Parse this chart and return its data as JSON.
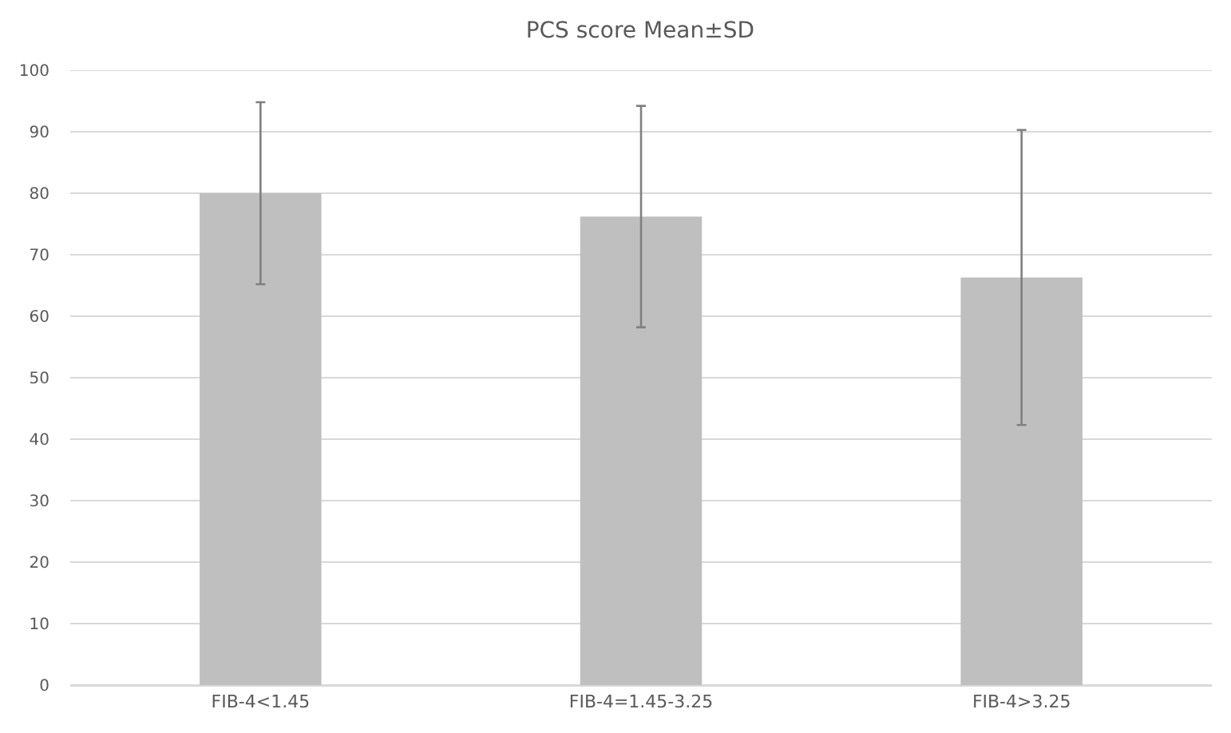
{
  "chart_data": {
    "type": "bar",
    "title": "PCS score Mean±SD",
    "categories": [
      "FIB-4<1.45",
      "FIB-4=1.45-3.25",
      "FIB-4>3.25"
    ],
    "values": [
      80,
      76.2,
      66.3
    ],
    "errors": [
      14.8,
      18,
      24
    ],
    "color": "#bfbfbf",
    "ylim": [
      0,
      100
    ],
    "yticks": [
      0,
      10,
      20,
      30,
      40,
      50,
      60,
      70,
      80,
      90,
      100
    ],
    "grid": "y"
  }
}
